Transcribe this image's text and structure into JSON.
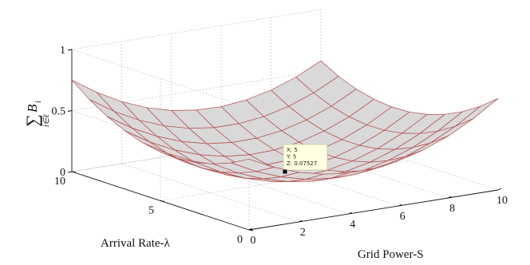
{
  "chart_data": {
    "type": "surface",
    "xlabel": "Grid Power-S",
    "ylabel": "Arrival Rate-λ",
    "zlabel_sym": "∑",
    "zlabel_sub": "i∈ℓ",
    "zlabel_var": "B",
    "zlabel_var_sub": "i",
    "xlim": [
      0,
      10
    ],
    "ylim": [
      0,
      10
    ],
    "zlim": [
      0,
      1
    ],
    "xticks": [
      "0",
      "2",
      "4",
      "6",
      "8",
      "10"
    ],
    "yticks": [
      "0",
      "5",
      "10"
    ],
    "zticks": [
      "0",
      "0.5",
      "1"
    ],
    "grid": true,
    "grid_x": [
      0,
      1,
      2,
      3,
      4,
      5,
      6,
      7,
      8,
      9,
      10
    ],
    "grid_y": [
      0,
      1,
      2,
      3,
      4,
      5,
      6,
      7,
      8,
      9,
      10
    ],
    "surface_model": {
      "z_min": 0.075,
      "minimum_at": [
        5,
        5
      ],
      "z_at_corner_x0_y10": 0.75,
      "z_at_corner_x10_y0": 0.58
    },
    "datatip": {
      "x": 5,
      "y": 5,
      "z": 0.07527,
      "lines": [
        "X: 5",
        "Y: 5",
        "Z: 0.07527"
      ]
    },
    "colors": {
      "surface_fill": "#d9d9d9",
      "mesh_edge": "#b54a4a",
      "axes": "#111111",
      "grid": "#bdbdbd",
      "tip_bg": "#ffffe1"
    }
  }
}
